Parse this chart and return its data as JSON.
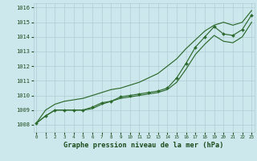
{
  "x": [
    0,
    1,
    2,
    3,
    4,
    5,
    6,
    7,
    8,
    9,
    10,
    11,
    12,
    13,
    14,
    15,
    16,
    17,
    18,
    19,
    20,
    21,
    22,
    23
  ],
  "line_measured": [
    1008.1,
    1008.6,
    1009.0,
    1009.0,
    1009.0,
    1009.0,
    1009.2,
    1009.5,
    1009.6,
    1009.9,
    1010.0,
    1010.1,
    1010.2,
    1010.3,
    1010.5,
    1011.2,
    1012.2,
    1013.3,
    1014.0,
    1014.7,
    1014.2,
    1014.1,
    1014.5,
    1015.5
  ],
  "line_upper": [
    1008.1,
    1009.0,
    1009.4,
    1009.6,
    1009.7,
    1009.8,
    1010.0,
    1010.2,
    1010.4,
    1010.5,
    1010.7,
    1010.9,
    1011.2,
    1011.5,
    1012.0,
    1012.5,
    1013.2,
    1013.8,
    1014.4,
    1014.8,
    1015.0,
    1014.8,
    1015.0,
    1015.8
  ],
  "line_lower": [
    1008.1,
    1008.6,
    1009.0,
    1009.0,
    1009.0,
    1009.0,
    1009.1,
    1009.4,
    1009.6,
    1009.8,
    1009.9,
    1010.0,
    1010.1,
    1010.2,
    1010.4,
    1010.9,
    1011.8,
    1012.8,
    1013.5,
    1014.1,
    1013.7,
    1013.6,
    1014.0,
    1015.0
  ],
  "bg_color": "#cde8ed",
  "grid_color": "#aecdd4",
  "line_color": "#2d6a2d",
  "text_color": "#1a4a1a",
  "xlabel": "Graphe pression niveau de la mer (hPa)",
  "ylim": [
    1007.5,
    1016.3
  ],
  "yticks": [
    1008,
    1009,
    1010,
    1011,
    1012,
    1013,
    1014,
    1015,
    1016
  ],
  "xticks": [
    0,
    1,
    2,
    3,
    4,
    5,
    6,
    7,
    8,
    9,
    10,
    11,
    12,
    13,
    14,
    15,
    16,
    17,
    18,
    19,
    20,
    21,
    22,
    23
  ]
}
